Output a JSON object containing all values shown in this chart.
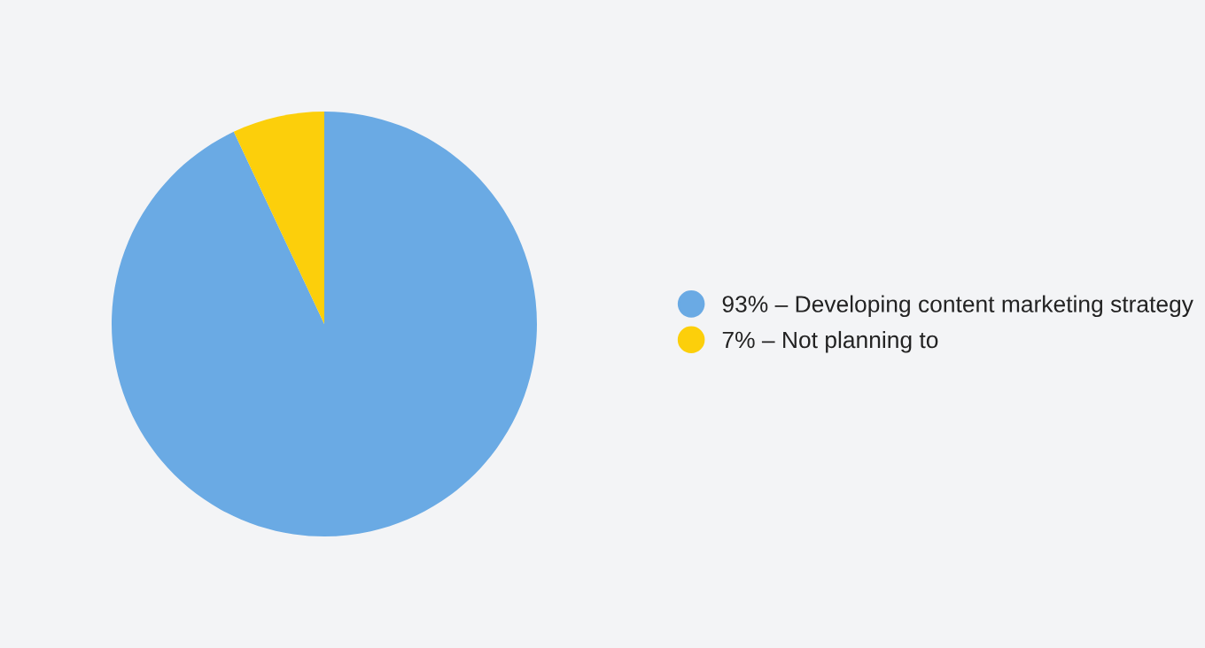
{
  "chart_data": {
    "type": "pie",
    "categories": [
      "93% – Developing content marketing strategy",
      "7% – Not planning to"
    ],
    "values": [
      93,
      7
    ],
    "colors": [
      "#6aaae4",
      "#fccf0b"
    ],
    "legend": "right"
  }
}
